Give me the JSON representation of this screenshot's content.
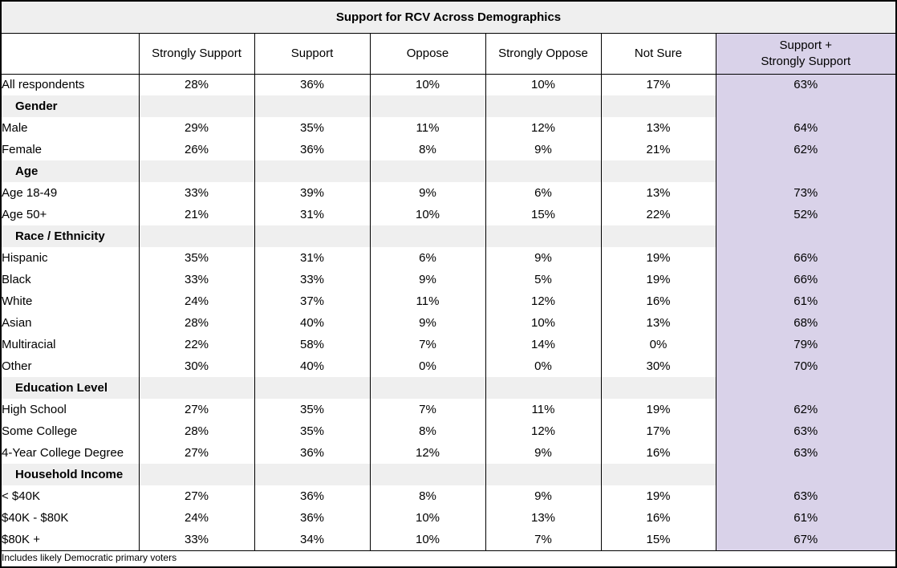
{
  "title": "Support for RCV Across Demographics",
  "footnote": "Includes likely Democratic primary voters",
  "colors": {
    "highlight_column": "#d9d2e9",
    "section_band": "#efefef",
    "title_band": "#efefef",
    "border": "#000000"
  },
  "columns": [
    "",
    "Strongly Support",
    "Support",
    "Oppose",
    "Strongly Oppose",
    "Not Sure",
    "Support +\nStrongly Support"
  ],
  "chart_data": {
    "type": "table",
    "title": "Support for RCV Across Demographics",
    "footnote": "Includes likely Democratic primary voters",
    "columns": [
      "Strongly Support",
      "Support",
      "Oppose",
      "Strongly Oppose",
      "Not Sure",
      "Support + Strongly Support"
    ],
    "highlight_column": "Support + Strongly Support",
    "rows": [
      {
        "kind": "data",
        "label": "All respondents",
        "values": [
          "28%",
          "36%",
          "10%",
          "10%",
          "17%"
        ],
        "total": "63%"
      },
      {
        "kind": "section",
        "label": "Gender",
        "values": [
          "",
          "",
          "",
          "",
          ""
        ],
        "total": ""
      },
      {
        "kind": "data",
        "label": "Male",
        "values": [
          "29%",
          "35%",
          "11%",
          "12%",
          "13%"
        ],
        "total": "64%"
      },
      {
        "kind": "data",
        "label": "Female",
        "values": [
          "26%",
          "36%",
          "8%",
          "9%",
          "21%"
        ],
        "total": "62%"
      },
      {
        "kind": "section",
        "label": "Age",
        "values": [
          "",
          "",
          "",
          "",
          ""
        ],
        "total": ""
      },
      {
        "kind": "data",
        "label": "Age 18-49",
        "values": [
          "33%",
          "39%",
          "9%",
          "6%",
          "13%"
        ],
        "total": "73%"
      },
      {
        "kind": "data",
        "label": "Age 50+",
        "values": [
          "21%",
          "31%",
          "10%",
          "15%",
          "22%"
        ],
        "total": "52%"
      },
      {
        "kind": "section",
        "label": "Race / Ethnicity",
        "values": [
          "",
          "",
          "",
          "",
          ""
        ],
        "total": ""
      },
      {
        "kind": "data",
        "label": "Hispanic",
        "values": [
          "35%",
          "31%",
          "6%",
          "9%",
          "19%"
        ],
        "total": "66%"
      },
      {
        "kind": "data",
        "label": "Black",
        "values": [
          "33%",
          "33%",
          "9%",
          "5%",
          "19%"
        ],
        "total": "66%"
      },
      {
        "kind": "data",
        "label": "White",
        "values": [
          "24%",
          "37%",
          "11%",
          "12%",
          "16%"
        ],
        "total": "61%"
      },
      {
        "kind": "data",
        "label": "Asian",
        "values": [
          "28%",
          "40%",
          "9%",
          "10%",
          "13%"
        ],
        "total": "68%"
      },
      {
        "kind": "data",
        "label": "Multiracial",
        "values": [
          "22%",
          "58%",
          "7%",
          "14%",
          "0%"
        ],
        "total": "79%"
      },
      {
        "kind": "data",
        "label": "Other",
        "values": [
          "30%",
          "40%",
          "0%",
          "0%",
          "30%"
        ],
        "total": "70%"
      },
      {
        "kind": "section",
        "label": "Education Level",
        "values": [
          "",
          "",
          "",
          "",
          ""
        ],
        "total": ""
      },
      {
        "kind": "data",
        "label": "High School",
        "values": [
          "27%",
          "35%",
          "7%",
          "11%",
          "19%"
        ],
        "total": "62%"
      },
      {
        "kind": "data",
        "label": "Some College",
        "values": [
          "28%",
          "35%",
          "8%",
          "12%",
          "17%"
        ],
        "total": "63%"
      },
      {
        "kind": "data",
        "label": "4-Year College Degree",
        "values": [
          "27%",
          "36%",
          "12%",
          "9%",
          "16%"
        ],
        "total": "63%"
      },
      {
        "kind": "section",
        "label": "Household Income",
        "values": [
          "",
          "",
          "",
          "",
          ""
        ],
        "total": ""
      },
      {
        "kind": "data",
        "label": "< $40K",
        "values": [
          "27%",
          "36%",
          "8%",
          "9%",
          "19%"
        ],
        "total": "63%"
      },
      {
        "kind": "data",
        "label": "$40K - $80K",
        "values": [
          "24%",
          "36%",
          "10%",
          "13%",
          "16%"
        ],
        "total": "61%"
      },
      {
        "kind": "data",
        "label": "$80K +",
        "values": [
          "33%",
          "34%",
          "10%",
          "7%",
          "15%"
        ],
        "total": "67%"
      }
    ]
  }
}
